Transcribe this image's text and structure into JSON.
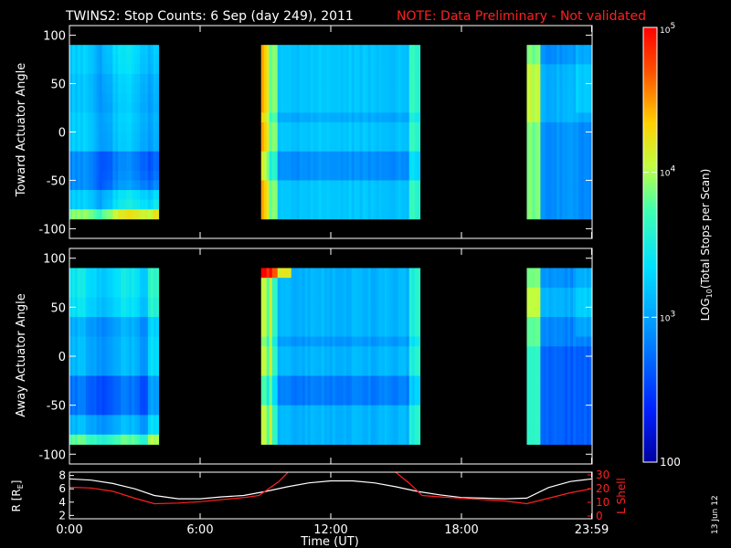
{
  "header": {
    "title": "TWINS2: Stop Counts:  6 Sep (day 249), 2011",
    "note": "NOTE: Data Preliminary - Not validated",
    "note_color": "#ff2020"
  },
  "footer": {
    "stamp": "13 Jun 12"
  },
  "colorbar": {
    "label": "LOG10(Total Stops per Scan)",
    "label_prefix": "LOG",
    "label_sub": "10",
    "label_rest": "(Total Stops per Scan)",
    "ticks": [
      "10^5",
      "10^4",
      "10^3",
      "100"
    ],
    "tick_values": [
      100000,
      10000,
      1000,
      100
    ],
    "range": [
      100,
      100000
    ],
    "scale": "log"
  },
  "chart_data": [
    {
      "type": "heatmap",
      "name": "toward",
      "ylabel": "Toward Actuator Angle",
      "ylim": [
        -110,
        110
      ],
      "yticks": [
        "100",
        "50",
        "0",
        "-50",
        "-100"
      ],
      "ytick_values": [
        100,
        50,
        0,
        -50,
        -100
      ],
      "xlim": [
        0,
        24
      ],
      "data_intervals_hours": [
        [
          0.0,
          4.1
        ],
        [
          8.8,
          16.1
        ],
        [
          21.0,
          24.0
        ]
      ],
      "angle_range": [
        -90,
        90
      ]
    },
    {
      "type": "heatmap",
      "name": "away",
      "ylabel": "Away Actuator Angle",
      "ylim": [
        -110,
        110
      ],
      "yticks": [
        "100",
        "50",
        "0",
        "-50",
        "-100"
      ],
      "ytick_values": [
        100,
        50,
        0,
        -50,
        -100
      ],
      "xlim": [
        0,
        24
      ],
      "data_intervals_hours": [
        [
          0.0,
          4.1
        ],
        [
          8.8,
          16.1
        ],
        [
          21.0,
          24.0
        ]
      ],
      "angle_range": [
        -90,
        90
      ]
    },
    {
      "type": "line",
      "name": "orbit",
      "xlabel": "Time (UT)",
      "xlim": [
        0,
        24
      ],
      "xticks": [
        "0:00",
        "6:00",
        "12:00",
        "18:00",
        "23:59"
      ],
      "xtick_values": [
        0,
        6,
        12,
        18,
        23.98
      ],
      "ylabel_left": "R [RE]",
      "ylabel_left_main": "R [R",
      "ylabel_left_sub": "E",
      "ylabel_left_end": "]",
      "ylim_left": [
        1.5,
        8.5
      ],
      "yticks_left": [
        "8",
        "6",
        "4",
        "2"
      ],
      "ytick_left_values": [
        8,
        6,
        4,
        2
      ],
      "ylabel_right": "L Shell",
      "ylim_right": [
        -2,
        32
      ],
      "yticks_right": [
        "30",
        "20",
        "10",
        "0"
      ],
      "ytick_right_values": [
        30,
        20,
        10,
        0
      ],
      "right_color": "#ff2020",
      "series": [
        {
          "axis": "left",
          "color": "#ffffff",
          "x": [
            0,
            1,
            2,
            3,
            3.9,
            5,
            6,
            7,
            8,
            9,
            10,
            11,
            12,
            13,
            14,
            15,
            16,
            17,
            18,
            19,
            20,
            21,
            22,
            23,
            24
          ],
          "y": [
            7.5,
            7.3,
            6.8,
            6.0,
            5.0,
            4.5,
            4.5,
            4.8,
            5.0,
            5.6,
            6.3,
            6.9,
            7.2,
            7.2,
            6.9,
            6.3,
            5.6,
            5.1,
            4.7,
            4.6,
            4.5,
            4.6,
            6.2,
            7.1,
            7.5
          ]
        },
        {
          "axis": "right",
          "color": "#ff2020",
          "x": [
            0,
            1,
            2,
            3,
            3.9,
            5,
            6,
            7,
            8,
            8.7,
            9.6,
            10.1
          ],
          "y": [
            21,
            20.5,
            18,
            13,
            9,
            9.5,
            10.5,
            12,
            13.5,
            15,
            25,
            33
          ]
        },
        {
          "axis": "right",
          "color": "#ff2020",
          "x": [
            14.9,
            15.6,
            16.2,
            17,
            18,
            19,
            20,
            21,
            22,
            23,
            24
          ],
          "y": [
            33,
            24,
            15,
            14,
            13,
            12,
            11,
            9,
            13,
            17,
            20
          ]
        }
      ]
    }
  ]
}
